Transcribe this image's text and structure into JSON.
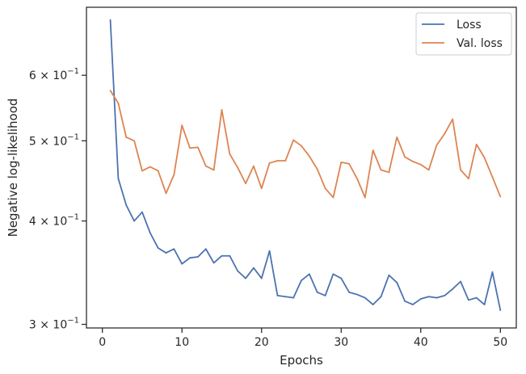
{
  "chart_data": {
    "type": "line",
    "title": "",
    "xlabel": "Epochs",
    "ylabel": "Negative log-likelihood",
    "xlim": [
      -2,
      52
    ],
    "ylim": [
      0.297,
      0.725
    ],
    "yscale": "log",
    "grid": false,
    "legend_position": "top-right",
    "x_ticks": [
      0,
      10,
      20,
      30,
      40,
      50
    ],
    "x_tick_labels": [
      "0",
      "10",
      "20",
      "30",
      "40",
      "50"
    ],
    "y_ticks": [
      {
        "value": 0.6,
        "mantissa": "6",
        "base": "10",
        "exp": "−1"
      },
      {
        "value": 0.5,
        "mantissa": "5",
        "base": "10",
        "exp": "−1"
      },
      {
        "value": 0.4,
        "mantissa": "4",
        "base": "10",
        "exp": "−1"
      },
      {
        "value": 0.3,
        "mantissa": "3",
        "base": "10",
        "exp": "−1"
      }
    ],
    "x": [
      1,
      2,
      3,
      4,
      5,
      6,
      7,
      8,
      9,
      10,
      11,
      12,
      13,
      14,
      15,
      16,
      17,
      18,
      19,
      20,
      21,
      22,
      23,
      24,
      25,
      26,
      27,
      28,
      29,
      30,
      31,
      32,
      33,
      34,
      35,
      36,
      37,
      38,
      39,
      40,
      41,
      42,
      43,
      44,
      45,
      46,
      47,
      48,
      49,
      50
    ],
    "series": [
      {
        "name": "Loss",
        "color": "#4c72b0",
        "values": [
          0.7,
          0.45,
          0.418,
          0.4,
          0.41,
          0.387,
          0.371,
          0.366,
          0.37,
          0.355,
          0.361,
          0.362,
          0.37,
          0.356,
          0.363,
          0.363,
          0.348,
          0.341,
          0.351,
          0.341,
          0.368,
          0.325,
          0.324,
          0.323,
          0.339,
          0.345,
          0.328,
          0.325,
          0.345,
          0.341,
          0.328,
          0.326,
          0.323,
          0.317,
          0.324,
          0.344,
          0.337,
          0.32,
          0.317,
          0.322,
          0.324,
          0.323,
          0.325,
          0.331,
          0.338,
          0.321,
          0.323,
          0.317,
          0.347,
          0.312
        ]
      },
      {
        "name": "Val. loss",
        "color": "#dd8452",
        "values": [
          0.575,
          0.555,
          0.505,
          0.5,
          0.46,
          0.465,
          0.46,
          0.432,
          0.455,
          0.522,
          0.49,
          0.491,
          0.466,
          0.461,
          0.545,
          0.482,
          0.464,
          0.444,
          0.466,
          0.438,
          0.47,
          0.473,
          0.473,
          0.501,
          0.493,
          0.479,
          0.462,
          0.438,
          0.427,
          0.471,
          0.469,
          0.45,
          0.427,
          0.487,
          0.461,
          0.458,
          0.505,
          0.478,
          0.472,
          0.468,
          0.461,
          0.494,
          0.51,
          0.531,
          0.461,
          0.45,
          0.495,
          0.477,
          0.452,
          0.428
        ]
      }
    ]
  }
}
